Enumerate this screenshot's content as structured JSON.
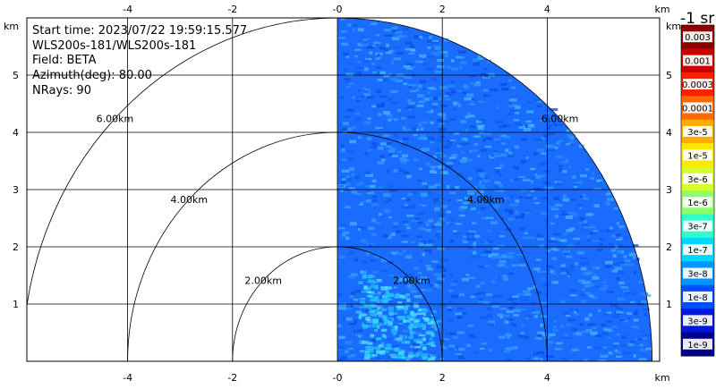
{
  "info": {
    "start_time": "Start time: 2023/07/22 19:59:15.577",
    "instrument": "WLS200s-181/WLS200s-181",
    "field": "Field: BETA",
    "azimuth": "Azimuth(deg): 80.00",
    "nrays": "NRays: 90"
  },
  "chart_data": {
    "type": "heatmap",
    "plot_kind": "RHI scan (range-height, polar)",
    "x_unit": "km",
    "y_unit": "km",
    "xlim": [
      -6,
      6
    ],
    "ylim": [
      0,
      6
    ],
    "x_ticks": [
      "-4",
      "-2",
      "-0",
      "2",
      "4"
    ],
    "y_ticks": [
      "1",
      "2",
      "3",
      "4",
      "5"
    ],
    "range_rings": [
      {
        "range_km": 2,
        "label": "2.00km"
      },
      {
        "range_km": 4,
        "label": "4.00km"
      },
      {
        "range_km": 6,
        "label": "6.00km"
      }
    ],
    "data_coverage": {
      "elevation_deg": [
        0,
        90
      ],
      "max_range_km": 6
    },
    "background_colour": "#1a6cff",
    "colorbar": {
      "title": "-1 sr",
      "scale": "log",
      "labels": [
        "0.003",
        "0.001",
        "0.0003",
        "0.0001",
        "3e-5",
        "1e-5",
        "3e-6",
        "1e-6",
        "3e-7",
        "1e-7",
        "3e-8",
        "1e-8",
        "3e-9",
        "1e-9"
      ],
      "colors": [
        "#8a0000",
        "#c80000",
        "#ff2000",
        "#ff6a00",
        "#ffae00",
        "#ffe800",
        "#d4ff2a",
        "#8cff6a",
        "#2effc8",
        "#00d8ff",
        "#0096ff",
        "#0050ff",
        "#0018d8",
        "#00008c"
      ]
    }
  }
}
